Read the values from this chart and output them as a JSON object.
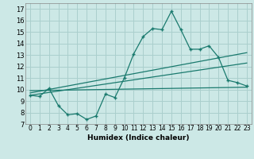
{
  "title": "",
  "xlabel": "Humidex (Indice chaleur)",
  "bg_color": "#cce8e6",
  "grid_color": "#aacfcd",
  "line_color": "#1a7a6e",
  "xlim": [
    -0.5,
    23.5
  ],
  "ylim": [
    7,
    17.5
  ],
  "xticks": [
    0,
    1,
    2,
    3,
    4,
    5,
    6,
    7,
    8,
    9,
    10,
    11,
    12,
    13,
    14,
    15,
    16,
    17,
    18,
    19,
    20,
    21,
    22,
    23
  ],
  "yticks": [
    7,
    8,
    9,
    10,
    11,
    12,
    13,
    14,
    15,
    16,
    17
  ],
  "zigzag_x": [
    0,
    1,
    2,
    3,
    4,
    5,
    6,
    7,
    8,
    9,
    10,
    11,
    12,
    13,
    14,
    15,
    16,
    17,
    18,
    19,
    20,
    21,
    22,
    23
  ],
  "zigzag_y": [
    9.5,
    9.4,
    10.1,
    8.6,
    7.8,
    7.9,
    7.4,
    7.7,
    9.6,
    9.3,
    11.0,
    13.1,
    14.6,
    15.3,
    15.2,
    16.8,
    15.2,
    13.5,
    13.5,
    13.8,
    12.8,
    10.8,
    10.6,
    10.3
  ],
  "line1_x": [
    0,
    23
  ],
  "line1_y": [
    9.5,
    12.3
  ],
  "line2_x": [
    0,
    23
  ],
  "line2_y": [
    9.7,
    13.2
  ],
  "line3_x": [
    0,
    23
  ],
  "line3_y": [
    9.9,
    10.2
  ],
  "xlabel_fontsize": 6.5,
  "tick_fontsize": 5.5
}
